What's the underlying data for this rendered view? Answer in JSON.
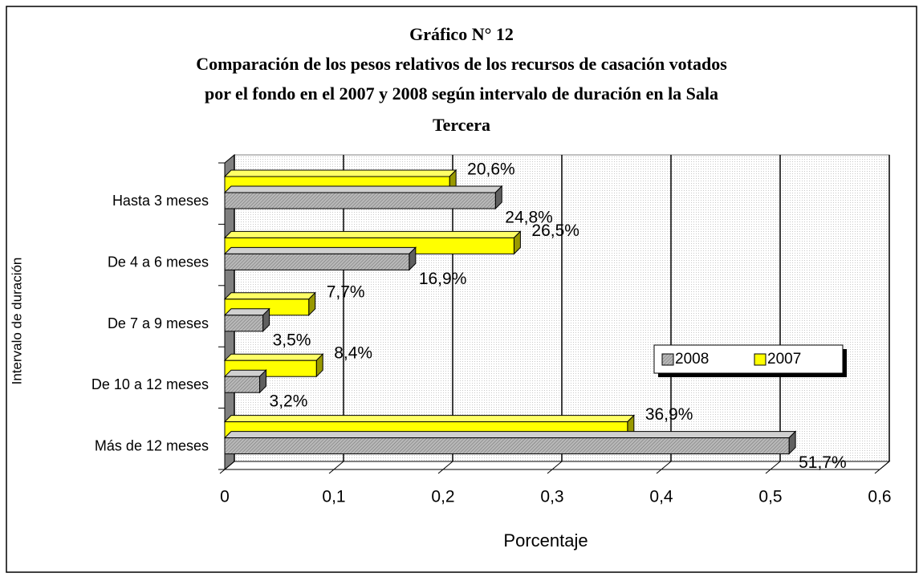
{
  "chart_data": {
    "type": "bar3d_horizontal",
    "title": "Gráfico N° 12",
    "subtitle": [
      "Comparación de los pesos relativos de los recursos de casación votados",
      "por el fondo en el 2007 y 2008 según intervalo de duración en la Sala",
      "Tercera"
    ],
    "x_label": "Porcentaje",
    "y_label": "Intervalo de duración",
    "categories": [
      "Hasta 3 meses",
      "De 4 a 6 meses",
      "De 7 a 9 meses",
      "De 10 a 12 meses",
      "Más de 12 meses"
    ],
    "series": [
      {
        "name": "2007",
        "color": "#ffff00",
        "hatch": false,
        "values": [
          0.206,
          0.265,
          0.077,
          0.084,
          0.369
        ],
        "value_labels": [
          "20,6%",
          "26,5%",
          "7,7%",
          "8,4%",
          "36,9%"
        ]
      },
      {
        "name": "2008",
        "color": "#a6a6a6",
        "hatch": true,
        "values": [
          0.248,
          0.169,
          0.035,
          0.032,
          0.517
        ],
        "value_labels": [
          "24,8%",
          "16,9%",
          "3,5%",
          "3,2%",
          "51,7%"
        ]
      }
    ],
    "legend_order": [
      "2008",
      "2007"
    ],
    "xlim": [
      0,
      0.6
    ],
    "xticks": [
      0,
      {
        "value": 0.1,
        "label": "0,1"
      },
      {
        "value": 0.2,
        "label": "0,2"
      },
      {
        "value": 0.3,
        "label": "0,3"
      },
      {
        "value": 0.4,
        "label": "0,4"
      },
      {
        "value": 0.5,
        "label": "0,5"
      },
      {
        "value": 0.6,
        "label": "0,6"
      }
    ],
    "grid": true,
    "legend_position": "right"
  }
}
